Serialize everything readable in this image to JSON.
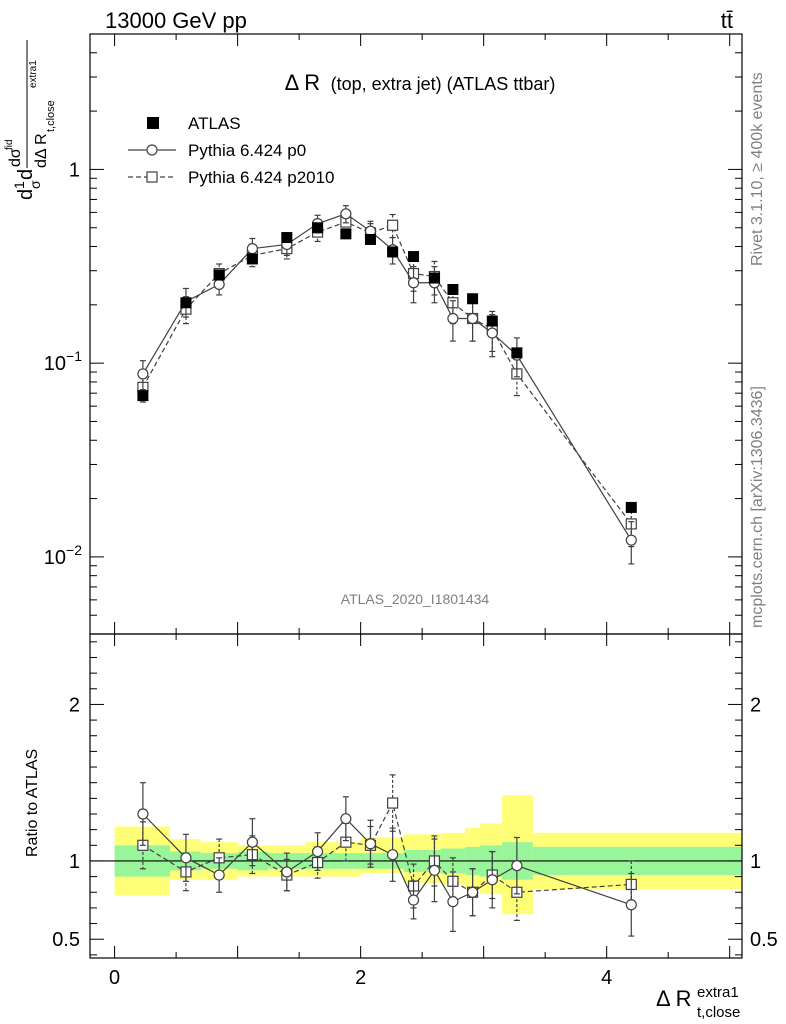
{
  "header": {
    "energy_label": "13000 GeV pp",
    "process_label": "tt̄"
  },
  "side_labels": {
    "rivet": "Rivet 3.1.10, ≥ 400k events",
    "mcplots": "mcplots.cern.ch [arXiv:1306.3436]"
  },
  "chart_data": [
    {
      "type": "scatter",
      "title_main": "Δ R",
      "title_detail": "(top, extra jet) (ATLAS ttbar)",
      "watermark": "ATLAS_2020_I1801434",
      "ylabel": "dσ/dΔR (normalised)",
      "yscale": "log",
      "ylim": [
        0.004,
        5
      ],
      "xlim": [
        -0.2,
        5.1
      ],
      "yticks": [
        {
          "v": 0.01,
          "base": "10",
          "exp": "−2"
        },
        {
          "v": 0.1,
          "base": "10",
          "exp": "−1"
        },
        {
          "v": 1,
          "base": "1",
          "exp": ""
        }
      ],
      "legend": {
        "placement": "top-left",
        "entries": [
          "ATLAS",
          "Pythia 6.424 p0",
          "Pythia 6.424 p2010"
        ]
      },
      "series": [
        {
          "name": "ATLAS",
          "style": "filled-square",
          "color": "#000000",
          "x": [
            0.23,
            0.58,
            0.85,
            1.12,
            1.4,
            1.65,
            1.88,
            2.08,
            2.26,
            2.43,
            2.6,
            2.75,
            2.91,
            3.07,
            3.27,
            4.2
          ],
          "y": [
            0.068,
            0.205,
            0.285,
            0.345,
            0.445,
            0.5,
            0.465,
            0.435,
            0.375,
            0.355,
            0.275,
            0.24,
            0.215,
            0.165,
            0.113,
            0.018
          ]
        },
        {
          "name": "Pythia 6.424 p0",
          "style": "open-circle-solid",
          "color": "#404040",
          "x": [
            0.23,
            0.58,
            0.85,
            1.12,
            1.4,
            1.65,
            1.88,
            2.08,
            2.26,
            2.43,
            2.6,
            2.75,
            2.91,
            3.07,
            3.27,
            4.2
          ],
          "y": [
            0.088,
            0.208,
            0.255,
            0.39,
            0.41,
            0.525,
            0.59,
            0.48,
            0.385,
            0.26,
            0.26,
            0.17,
            0.17,
            0.143,
            0.11,
            0.0122
          ],
          "yerr": [
            0.015,
            0.035,
            0.03,
            0.05,
            0.05,
            0.055,
            0.06,
            0.06,
            0.06,
            0.055,
            0.055,
            0.04,
            0.04,
            0.035,
            0.025,
            0.003
          ]
        },
        {
          "name": "Pythia 6.424 p2010",
          "style": "open-square-dashed",
          "color": "#404040",
          "x": [
            0.23,
            0.58,
            0.85,
            1.12,
            1.4,
            1.65,
            1.88,
            2.08,
            2.26,
            2.43,
            2.6,
            2.75,
            2.91,
            3.07,
            3.27,
            4.2
          ],
          "y": [
            0.075,
            0.19,
            0.29,
            0.36,
            0.39,
            0.475,
            0.535,
            0.47,
            0.515,
            0.29,
            0.28,
            0.205,
            0.17,
            0.15,
            0.088,
            0.0148
          ],
          "yerr": [
            0.012,
            0.03,
            0.035,
            0.045,
            0.045,
            0.05,
            0.055,
            0.055,
            0.07,
            0.055,
            0.055,
            0.045,
            0.04,
            0.035,
            0.02,
            0.0035
          ]
        }
      ]
    },
    {
      "type": "scatter",
      "ylabel": "Ratio to ATLAS",
      "xlabel_main": "Δ R",
      "xlabel_sup": "extra1",
      "xlabel_sub": "t,close",
      "ylim": [
        0.38,
        2.45
      ],
      "xlim": [
        -0.2,
        5.1
      ],
      "xticks": [
        0,
        2,
        4
      ],
      "yticks": [
        0.5,
        1,
        2
      ],
      "uncertainty_bands": {
        "edges": [
          0.0,
          0.45,
          0.7,
          1.0,
          1.25,
          1.55,
          1.75,
          2.0,
          2.15,
          2.35,
          2.5,
          2.65,
          2.85,
          2.97,
          3.15,
          3.4,
          5.1
        ],
        "inner_lo": [
          0.9,
          0.94,
          0.95,
          0.94,
          0.95,
          0.95,
          0.95,
          0.95,
          0.95,
          0.93,
          0.93,
          0.92,
          0.91,
          0.9,
          0.88,
          0.91
        ],
        "inner_hi": [
          1.1,
          1.06,
          1.05,
          1.06,
          1.05,
          1.05,
          1.05,
          1.05,
          1.05,
          1.07,
          1.07,
          1.08,
          1.09,
          1.1,
          1.12,
          1.09
        ],
        "outer_lo": [
          0.78,
          0.88,
          0.88,
          0.9,
          0.9,
          0.9,
          0.9,
          0.92,
          0.92,
          0.86,
          0.86,
          0.85,
          0.82,
          0.79,
          0.66,
          0.82
        ],
        "outer_hi": [
          1.22,
          1.14,
          1.12,
          1.1,
          1.1,
          1.12,
          1.12,
          1.15,
          1.15,
          1.17,
          1.17,
          1.18,
          1.21,
          1.24,
          1.42,
          1.18
        ]
      },
      "series": [
        {
          "name": "Pythia 6.424 p0",
          "style": "open-circle-solid",
          "color": "#404040",
          "x": [
            0.23,
            0.58,
            0.85,
            1.12,
            1.4,
            1.65,
            1.88,
            2.08,
            2.26,
            2.43,
            2.6,
            2.75,
            2.91,
            3.07,
            3.27,
            4.2
          ],
          "y": [
            1.3,
            1.02,
            0.91,
            1.12,
            0.93,
            1.06,
            1.27,
            1.11,
            1.04,
            0.75,
            0.94,
            0.74,
            0.8,
            0.88,
            0.97,
            0.72
          ],
          "yerr": [
            0.2,
            0.15,
            0.11,
            0.15,
            0.12,
            0.12,
            0.14,
            0.15,
            0.17,
            0.12,
            0.2,
            0.19,
            0.15,
            0.18,
            0.18,
            0.2
          ]
        },
        {
          "name": "Pythia 6.424 p2010",
          "style": "open-square-dashed",
          "color": "#404040",
          "x": [
            0.23,
            0.58,
            0.85,
            1.12,
            1.4,
            1.65,
            1.88,
            2.08,
            2.26,
            2.43,
            2.6,
            2.75,
            2.91,
            3.07,
            3.27,
            4.2
          ],
          "y": [
            1.1,
            0.93,
            1.02,
            1.04,
            0.91,
            0.99,
            1.12,
            1.1,
            1.37,
            0.84,
            1.0,
            0.87,
            0.8,
            0.91,
            0.8,
            0.85
          ],
          "yerr": [
            0.15,
            0.12,
            0.12,
            0.12,
            0.1,
            0.1,
            0.12,
            0.12,
            0.18,
            0.14,
            0.16,
            0.15,
            0.15,
            0.15,
            0.18,
            0.15
          ]
        }
      ]
    }
  ]
}
